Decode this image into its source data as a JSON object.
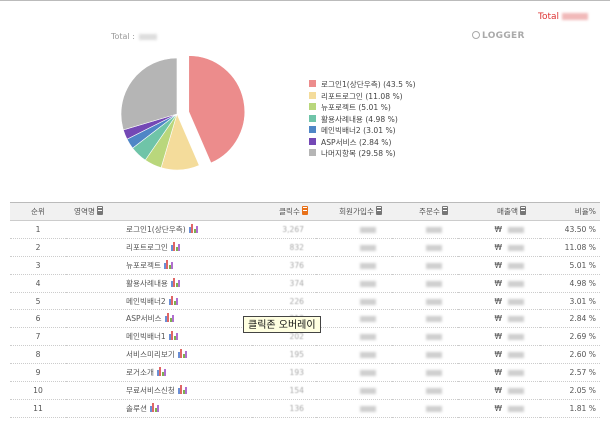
{
  "header": {
    "total_label": "Total",
    "total_left_label": "Total :",
    "logo_text": "LOGGER"
  },
  "chart_data": {
    "type": "pie",
    "title": "",
    "slices": [
      {
        "label": "로그인1(상단우측) (43.5 %)",
        "value": 43.5,
        "color": "#ec8c8c"
      },
      {
        "label": "리포트로그인 (11.08 %)",
        "value": 11.08,
        "color": "#f4dc9b"
      },
      {
        "label": "뉴포로젝트 (5.01 %)",
        "value": 5.01,
        "color": "#b9d77c"
      },
      {
        "label": "활용사례내용 (4.98 %)",
        "value": 4.98,
        "color": "#6fc4a8"
      },
      {
        "label": "메인빅배너2 (3.01 %)",
        "value": 3.01,
        "color": "#4f86c6"
      },
      {
        "label": "ASP서비스 (2.84 %)",
        "value": 2.84,
        "color": "#7448b5"
      },
      {
        "label": "나머지항목 (29.58 %)",
        "value": 29.58,
        "color": "#b5b5b5"
      }
    ],
    "exploded_slice_index": 0,
    "legend_position": "right"
  },
  "table": {
    "columns": [
      "순위",
      "영역명",
      "클릭수",
      "회원가입수",
      "주문수",
      "매출액",
      "비율%"
    ],
    "rows": [
      {
        "rank": "1",
        "name": "로그인1(상단우측)",
        "clicks": "3,267",
        "ratio": "43.50 %",
        "currency": "₩"
      },
      {
        "rank": "2",
        "name": "리포트로그인",
        "clicks": "832",
        "ratio": "11.08 %",
        "currency": "₩"
      },
      {
        "rank": "3",
        "name": "뉴포로젝트",
        "clicks": "376",
        "ratio": "5.01 %",
        "currency": "₩"
      },
      {
        "rank": "4",
        "name": "활용사례내용",
        "clicks": "374",
        "ratio": "4.98 %",
        "currency": "₩"
      },
      {
        "rank": "5",
        "name": "메인빅배너2",
        "clicks": "226",
        "ratio": "3.01 %",
        "currency": "₩"
      },
      {
        "rank": "6",
        "name": "ASP서비스",
        "clicks": "213",
        "ratio": "2.84 %",
        "currency": "₩"
      },
      {
        "rank": "7",
        "name": "메인빅배너1",
        "clicks": "202",
        "ratio": "2.69 %",
        "currency": "₩"
      },
      {
        "rank": "8",
        "name": "서비스미리보기",
        "clicks": "195",
        "ratio": "2.60 %",
        "currency": "₩"
      },
      {
        "rank": "9",
        "name": "로거소개",
        "clicks": "193",
        "ratio": "2.57 %",
        "currency": "₩"
      },
      {
        "rank": "10",
        "name": "무료서비스신청",
        "clicks": "154",
        "ratio": "2.05 %",
        "currency": "₩"
      },
      {
        "rank": "11",
        "name": "솔루션",
        "clicks": "136",
        "ratio": "1.81 %",
        "currency": "₩"
      }
    ]
  },
  "tooltip": {
    "text": "클릭존 오버레이"
  }
}
